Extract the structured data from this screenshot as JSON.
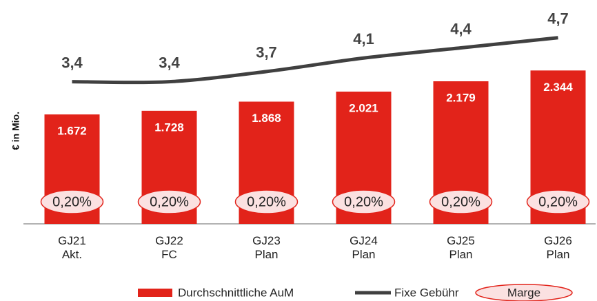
{
  "chart_data": {
    "type": "bar_line",
    "y_label": "€ in Mio.",
    "categories": [
      "GJ21\nAkt.",
      "GJ22\nFC",
      "GJ23\nPlan",
      "GJ24\nPlan",
      "GJ25\nPlan",
      "GJ26\nPlan"
    ],
    "series": [
      {
        "name": "Durchschnittliche AuM",
        "type": "bar",
        "color": "#e2231a",
        "values": [
          1672,
          1728,
          1868,
          2021,
          2179,
          2344
        ],
        "value_labels": [
          "1.672",
          "1.728",
          "1.868",
          "2.021",
          "2.179",
          "2.344"
        ]
      },
      {
        "name": "Fixe Gebühr",
        "type": "line",
        "axis": "y2",
        "color": "#404040",
        "values": [
          3.4,
          3.4,
          3.7,
          4.1,
          4.4,
          4.7
        ],
        "value_labels": [
          "3,4",
          "3,4",
          "3,7",
          "4,1",
          "4,4",
          "4,7"
        ]
      },
      {
        "name": "Marge",
        "type": "badge",
        "color": "#fbe1e1",
        "values": [
          0.2,
          0.2,
          0.2,
          0.2,
          0.2,
          0.2
        ],
        "value_labels": [
          "0,20%",
          "0,20%",
          "0,20%",
          "0,20%",
          "0,20%",
          "0,20%"
        ]
      }
    ],
    "ylim": [
      0,
      3000
    ],
    "y2lim": [
      -0.8,
      5
    ]
  }
}
